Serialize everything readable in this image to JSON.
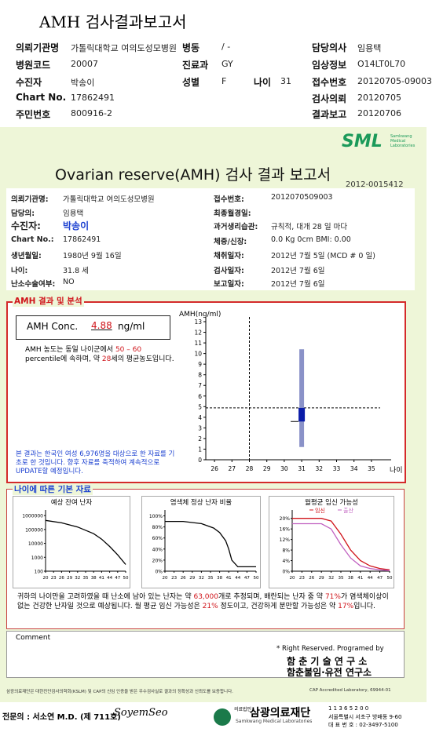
{
  "header": {
    "title": "AMH 검사결과보고서",
    "fields": [
      {
        "label": "의뢰기관명",
        "value": "가톨릭대학교 여의도성모병원"
      },
      {
        "label": "병동",
        "value": "/ -"
      },
      {
        "label": "담당의사",
        "value": "임용택"
      },
      {
        "label": "병원코드",
        "value": "20007"
      },
      {
        "label": "진료과",
        "value": "GY"
      },
      {
        "label": "임상정보",
        "value": "O14LT0L70"
      },
      {
        "label": "수진자",
        "value": "박송이"
      },
      {
        "label": "성별",
        "value": "F"
      },
      {
        "label": "나이",
        "value": "31"
      },
      {
        "label": "접수번호",
        "value": "20120705-09003"
      },
      {
        "label": "Chart No.",
        "value": "17862491"
      },
      {
        "label": "검사의뢰",
        "value": "20120705"
      },
      {
        "label": "주민번호",
        "value": "800916-2"
      },
      {
        "label": "결과보고",
        "value": "20120706"
      }
    ]
  },
  "report": {
    "logo": "SML",
    "logo_sub": "Samkwang Medical Laboratories",
    "title": "Ovarian reserve(AMH) 검사 결과 보고서",
    "id": "2012-0015412",
    "info_left": [
      {
        "label": "의뢰기관명:",
        "value": "가톨릭대학교 여의도성모병원"
      },
      {
        "label": "담당의:",
        "value": "임용택"
      },
      {
        "label": "수진자:",
        "value": "박송이"
      },
      {
        "label": "Chart No.:",
        "value": "17862491"
      },
      {
        "label": "생년월일:",
        "value": "1980년 9월 16일"
      },
      {
        "label": "나이:",
        "value": "31.8 세"
      },
      {
        "label": "난소수술여부:",
        "value": "NO"
      }
    ],
    "info_right": [
      {
        "label": "접수번호:",
        "value": "2012070509003"
      },
      {
        "label": "최종월경일:"
      },
      {
        "label": "과거생리습관:",
        "value": "규칙적, 대개  28 일 마다"
      },
      {
        "label": "체중/신장:",
        "value": "0.0 Kg      0cm    BMI:  0.00"
      },
      {
        "label": "채취일자:",
        "value": "2012년 7월 5일     (MCD # 0 일)"
      },
      {
        "label": "검사일자:",
        "value": "2012년 7월 6일"
      },
      {
        "label": "보고일자:",
        "value": "2012년 7월 6일"
      }
    ],
    "amh": {
      "section": "AMH 결과 및 분석",
      "label": "AMH Conc.",
      "value": 4.88,
      "unit": "ng/ml",
      "desc": [
        "AMH 농도는 동일 나이군에서",
        "50 – 60",
        "percentile에 속하며, 약",
        "28",
        "세의 평균농도입니다."
      ],
      "note": "본 결과는 한국인 여성 6,976명을 대상으로 한 자료를 기초로 한 것입니다. 향후 자료를 축적하여 계속적으로 UPDATE할 예정입니다.",
      "chart": {
        "ylabel": "AMH(ng/ml)",
        "xlabel": "나이",
        "ylim": [
          0,
          13
        ],
        "yticks": [
          0,
          1,
          2,
          3,
          4,
          5,
          6,
          7,
          8,
          9,
          10,
          11,
          12,
          13
        ],
        "xlim": [
          25.5,
          35.5
        ],
        "xticks": [
          26,
          27,
          28,
          29,
          30,
          31,
          32,
          33,
          34,
          35
        ],
        "ref_age": 28,
        "age": 31,
        "range": [
          1.2,
          10.4
        ],
        "box": [
          3.6,
          4.88
        ]
      }
    },
    "base": {
      "section": "나이에 따른 기본 자료",
      "charts": [
        {
          "title": "예상 잔여 난자",
          "log": true,
          "ylim": [
            100,
            1500000
          ],
          "yticks": [
            1000000,
            100000,
            10000,
            1000,
            100
          ],
          "xlim": [
            20,
            50
          ],
          "xticks": [
            20,
            23,
            26,
            29,
            32,
            35,
            38,
            41,
            44,
            47,
            50
          ],
          "series": [
            {
              "color": "#000000",
              "x": [
                20,
                26,
                32,
                38,
                41,
                44,
                47,
                50
              ],
              "values": [
                450000,
                300000,
                150000,
                50000,
                20000,
                6000,
                1500,
                300
              ]
            }
          ]
        },
        {
          "title": "염색체 정상 난자 비율",
          "ylim": [
            0,
            105
          ],
          "yticks": [
            {
              "value": 100,
              "label": "100%"
            },
            {
              "value": 80,
              "label": "80%"
            },
            {
              "value": 60,
              "label": "60%"
            },
            {
              "value": 40,
              "label": "40%"
            },
            {
              "value": 20,
              "label": "20%"
            },
            {
              "value": 0,
              "label": "0%"
            }
          ],
          "xlim": [
            20,
            50
          ],
          "xticks": [
            20,
            23,
            26,
            29,
            32,
            35,
            38,
            41,
            44,
            47,
            50
          ],
          "series": [
            {
              "color": "#000000",
              "x": [
                20,
                26,
                32,
                36,
                38,
                40,
                41,
                42,
                44,
                47,
                50
              ],
              "values": [
                90,
                90,
                86,
                78,
                70,
                55,
                40,
                20,
                8,
                8,
                8
              ]
            }
          ]
        },
        {
          "title": "월평균 임신 가능성",
          "ylim": [
            0,
            22
          ],
          "yticks": [
            {
              "value": 20,
              "label": "20%"
            },
            {
              "value": 16,
              "label": "16%"
            },
            {
              "value": 12,
              "label": "12%"
            },
            {
              "value": 8,
              "label": "8%"
            },
            {
              "value": 4,
              "label": "4%"
            },
            {
              "value": 0,
              "label": "0%"
            }
          ],
          "xlim": [
            20,
            50
          ],
          "xticks": [
            20,
            23,
            26,
            29,
            32,
            35,
            38,
            41,
            44,
            47,
            50
          ],
          "series": [
            {
              "name": "임신",
              "color": "#d0151b",
              "x": [
                20,
                29,
                32,
                35,
                38,
                41,
                44,
                47,
                50
              ],
              "values": [
                20,
                20,
                19,
                14,
                8,
                4,
                2,
                1,
                0.5
              ]
            },
            {
              "name": "출산",
              "color": "#c060c0",
              "x": [
                20,
                29,
                32,
                35,
                38,
                41,
                44,
                47,
                50
              ],
              "values": [
                18,
                18,
                16,
                10,
                5,
                2,
                1,
                0.5,
                0.2
              ]
            }
          ]
        }
      ],
      "summary": [
        "귀하의 나이만을 고려하였을 때 난소에 남아 있는 난자는 약 ",
        "63,000",
        "개로 추정되며, 배란되는 난자 중 약 ",
        "71%",
        "가 염색체이상이 없는 건강한 난자일 것으로 예상됩니다. 월 평균 임신 가능성은 ",
        "21%",
        " 정도이고, 건강하게 분만할 가능성은 약 ",
        "17%",
        "입니다."
      ]
    },
    "comment": "Comment",
    "rights": "* Right Reserved. Programed by",
    "institute1": "함 춘 기 술 연 구 소",
    "institute2": "함춘불임·유전 연구소",
    "accreditation": "삼광의료재단은 대한진단검사의학회(KSLM) 및 CAP의 신임 인증을 받은 우수검사실로 결과의 정확성과 신뢰도를 보증합니다.",
    "cap": "CAP Accredited Laboratory, 69944-01"
  },
  "footer": {
    "doctor": "전문의 : 서소연 M.D. (제 711호)",
    "signature": "SoyemSeo",
    "tag": "의료법인",
    "foundation": "삼광의료재단",
    "foundation_en": "Samkwang Medical Laboratories",
    "address": [
      "1 1 3 6 5 2 0 0",
      "서울특별시 서초구 방배동 9-60",
      "대 표 번 호 : 02-3497-5100"
    ]
  }
}
